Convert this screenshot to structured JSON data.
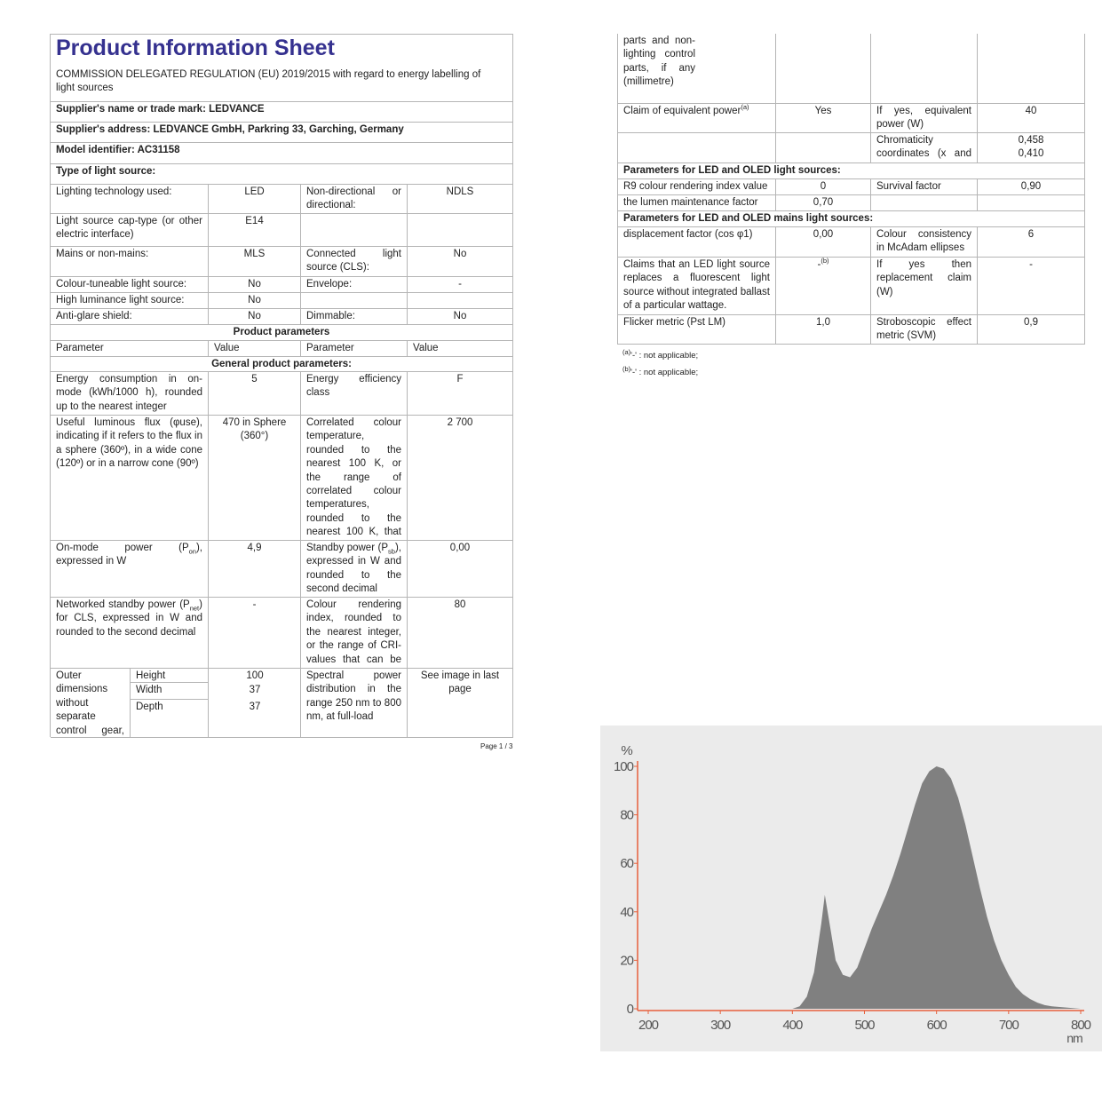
{
  "left_page": {
    "title": "Product Information Sheet",
    "subtitle": "COMMISSION DELEGATED REGULATION (EU) 2019/2015 with regard to energy labelling of light sources",
    "rows": [
      [
        {
          "label": "Supplier's name or trade mark:",
          "value": "LEDVANCE"
        }
      ],
      [
        {
          "label": "Supplier's address:",
          "value": "LEDVANCE GmbH, Parkring 33, Garching, Germany"
        }
      ],
      [
        {
          "label": "Model identifier:",
          "value": "AC31158"
        }
      ],
      [
        {
          "heading": "Type of light source:"
        }
      ],
      [
        "Lighting technology used:",
        "LED",
        "Non-directional or directional:",
        "NDLS"
      ],
      [
        "Light source cap-type (or other electric interface)",
        "E14",
        null,
        null
      ],
      [
        "Mains or non-mains:",
        "MLS",
        "Connected light source (CLS):",
        "No"
      ],
      [
        "Colour-tuneable light source:",
        "No",
        "Envelope:",
        "-"
      ],
      [
        "High luminance light source:",
        "No",
        null,
        null
      ],
      [
        "Anti-glare shield:",
        "No",
        "Dimmable:",
        "No"
      ],
      [
        {
          "heading": "Product parameters"
        }
      ],
      [
        "Parameter",
        "Value",
        "Parameter",
        "Value"
      ],
      [
        {
          "heading": "General product parameters:"
        }
      ],
      [
        "Energy consumption in on-mode (kWh/1000 h), rounded up to the nearest integer",
        "5",
        "Energy efficiency class",
        "F"
      ],
      [
        "Useful luminous flux (φuse), indicating if it refers to the flux in a sphere (360º), in a wide cone (120º) or in a narrow cone (90º)",
        "470 in Sphere (360°)",
        "Correlated colour temperature, rounded to the nearest 100 K, or the range of correlated colour temperatures, rounded to the nearest 100 K, that can be set",
        "2 700"
      ],
      [
        [
          "On-mode power (P",
          {
            "sub": "on"
          },
          "), expressed in W"
        ],
        "4,9",
        [
          "Standby power (P",
          {
            "sub": "sb"
          },
          "), expressed in W and rounded to the second decimal"
        ],
        "0,00"
      ],
      [
        [
          "Networked standby power (P",
          {
            "sub": "net"
          },
          ") for CLS, expressed in W and rounded to the second decimal"
        ],
        "-",
        "Colour rendering index, rounded to the nearest integer, or the range of CRI-values that can be set",
        "80"
      ],
      [
        {
          "text": "Outer dimensions without separate control gear, lighting control",
          "dims": [
            {
              "name": "Height",
              "value": "100"
            },
            {
              "name": "Width",
              "value": "37"
            },
            {
              "name": "Depth",
              "value": "37"
            }
          ]
        },
        "Spectral power distribution in the range 250 nm to 800 nm, at full-load",
        "See image in last page"
      ]
    ],
    "page": "Page 1 / 3"
  },
  "right_page": {
    "rows": [
      [
        "parts and non-lighting control parts, if any (millimetre)",
        null,
        null,
        null
      ],
      [
        [
          "Claim of equivalent power",
          {
            "sup": "(a)"
          }
        ],
        "Yes",
        "If yes, equivalent power (W)",
        "40"
      ],
      [
        null,
        null,
        "Chromaticity coordinates (x and y)",
        {
          "lines": [
            "0,458",
            "0,410"
          ]
        }
      ],
      [
        {
          "heading": "Parameters for LED and OLED light sources:"
        }
      ],
      [
        "R9 colour rendering index value",
        "0",
        "Survival factor",
        "0,90"
      ],
      [
        "the lumen maintenance factor",
        "0,70",
        null,
        null
      ],
      [
        {
          "heading": "Parameters for LED and OLED mains light sources:"
        }
      ],
      [
        "displacement factor (cos φ1)",
        "0,00",
        "Colour consistency in McAdam ellipses",
        "6"
      ],
      [
        "Claims that an LED light source replaces a fluorescent light source without integrated ballast of a particular wattage.",
        [
          "-",
          {
            "sup": "(b)"
          }
        ],
        "If yes then replacement claim (W)",
        "-"
      ],
      [
        "Flicker metric (Pst LM)",
        "1,0",
        "Stroboscopic effect metric (SVM)",
        "0,9"
      ]
    ],
    "footnotes": [
      [
        {
          "sup": "(a)"
        },
        "'-' : not applicable;"
      ],
      [
        {
          "sup": "(b)"
        },
        "'-' : not applicable;"
      ]
    ]
  },
  "chart_data": {
    "type": "area",
    "ylabel": "%",
    "xlabel": "nm",
    "x": [
      200,
      380,
      400,
      410,
      420,
      430,
      440,
      445,
      450,
      460,
      470,
      480,
      490,
      500,
      510,
      520,
      530,
      540,
      550,
      560,
      570,
      580,
      590,
      600,
      610,
      620,
      630,
      640,
      650,
      660,
      670,
      680,
      690,
      700,
      710,
      720,
      730,
      740,
      750,
      760,
      780,
      800
    ],
    "values": [
      0,
      0,
      0,
      1,
      5,
      15,
      35,
      47,
      38,
      20,
      14,
      13,
      17,
      25,
      33,
      40,
      47,
      55,
      64,
      74,
      84,
      93,
      98,
      100,
      99,
      95,
      87,
      76,
      63,
      50,
      38,
      28,
      20,
      14,
      9,
      6,
      4,
      2.5,
      1.5,
      1,
      0.5,
      0
    ],
    "color": "#808080",
    "axis_color": "#e8603c",
    "xlim": [
      200,
      800
    ],
    "ylim": [
      0,
      100
    ],
    "xticks": [
      200,
      300,
      400,
      500,
      600,
      700,
      800
    ],
    "yticks": [
      0,
      20,
      40,
      60,
      80,
      100
    ]
  }
}
